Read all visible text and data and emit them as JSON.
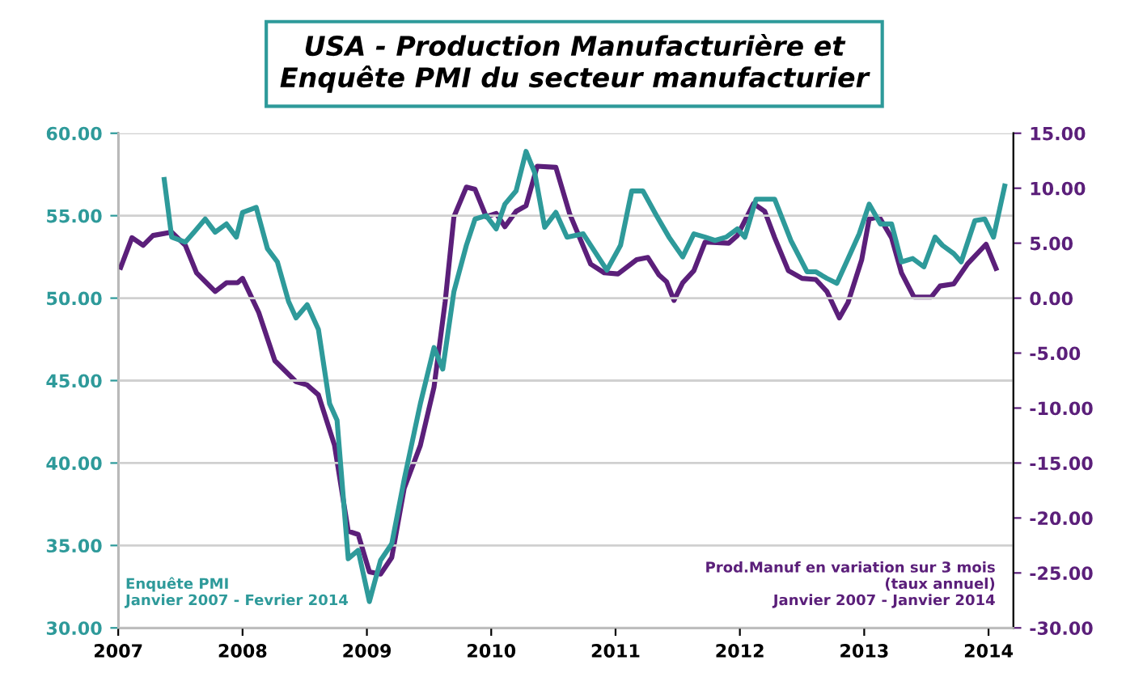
{
  "chart_data": {
    "type": "line",
    "title": "USA - Production Manufacturière et\nEnquête PMI du secteur manufacturier",
    "series": [
      {
        "name": null,
        "color": "#2e9a9a",
        "axis": "y",
        "x": [
          2007.37,
          2007.43,
          2007.54,
          2007.61,
          2007.7,
          2007.78,
          2007.87,
          2007.95,
          2008.0,
          2008.11,
          2008.2,
          2008.28,
          2008.37,
          2008.43,
          2008.52,
          2008.61,
          2008.7,
          2008.76,
          2008.85,
          2008.93,
          2009.02,
          2009.11,
          2009.2,
          2009.3,
          2009.43,
          2009.54,
          2009.61,
          2009.7,
          2009.8,
          2009.87,
          2009.96,
          2010.04,
          2010.11,
          2010.2,
          2010.28,
          2010.35,
          2010.43,
          2010.52,
          2010.61,
          2010.74,
          2010.93,
          2011.04,
          2011.13,
          2011.22,
          2011.33,
          2011.43,
          2011.54,
          2011.63,
          2011.72,
          2011.8,
          2011.89,
          2011.98,
          2012.04,
          2012.13,
          2012.28,
          2012.41,
          2012.54,
          2012.61,
          2012.7,
          2012.78,
          2012.87,
          2012.96,
          2013.04,
          2013.13,
          2013.22,
          2013.3,
          2013.39,
          2013.48,
          2013.57,
          2013.63,
          2013.72,
          2013.78,
          2013.89,
          2013.97,
          2014.04,
          2014.13
        ],
        "values": [
          57.2,
          53.7,
          53.4,
          54.0,
          54.8,
          54.0,
          54.5,
          53.7,
          55.2,
          55.5,
          53.0,
          52.2,
          49.8,
          48.8,
          49.6,
          48.1,
          43.6,
          42.6,
          34.2,
          34.7,
          31.6,
          34.1,
          35.1,
          39.0,
          43.6,
          47.0,
          45.7,
          50.4,
          53.2,
          54.8,
          55.0,
          54.2,
          55.7,
          56.5,
          58.9,
          57.6,
          54.3,
          55.2,
          53.7,
          53.9,
          51.7,
          53.2,
          56.5,
          56.5,
          55.0,
          53.7,
          52.5,
          53.9,
          53.7,
          53.5,
          53.7,
          54.2,
          53.7,
          56.0,
          56.0,
          53.5,
          51.6,
          51.6,
          51.2,
          50.9,
          52.4,
          53.9,
          55.7,
          54.5,
          54.5,
          52.2,
          52.4,
          51.9,
          53.7,
          53.2,
          52.7,
          52.2,
          54.7,
          54.8,
          53.7,
          56.8
        ]
      },
      {
        "name": null,
        "color": "#5b1f7a",
        "axis": "y2",
        "x": [
          2007.02,
          2007.11,
          2007.2,
          2007.28,
          2007.43,
          2007.54,
          2007.63,
          2007.78,
          2007.87,
          2007.96,
          2008.0,
          2008.13,
          2008.26,
          2008.43,
          2008.52,
          2008.61,
          2008.74,
          2008.85,
          2008.93,
          2009.02,
          2009.11,
          2009.2,
          2009.3,
          2009.43,
          2009.54,
          2009.63,
          2009.7,
          2009.8,
          2009.87,
          2009.96,
          2010.04,
          2010.11,
          2010.2,
          2010.28,
          2010.37,
          2010.52,
          2010.63,
          2010.8,
          2010.91,
          2011.02,
          2011.17,
          2011.26,
          2011.35,
          2011.41,
          2011.47,
          2011.54,
          2011.63,
          2011.72,
          2011.91,
          2011.98,
          2012.11,
          2012.2,
          2012.28,
          2012.39,
          2012.5,
          2012.61,
          2012.7,
          2012.8,
          2012.87,
          2012.98,
          2013.04,
          2013.12,
          2013.22,
          2013.3,
          2013.4,
          2013.54,
          2013.61,
          2013.72,
          2013.83,
          2013.98,
          2014.06
        ],
        "values": [
          2.8,
          5.5,
          4.8,
          5.7,
          6.0,
          4.8,
          2.3,
          0.6,
          1.4,
          1.4,
          1.8,
          -1.3,
          -5.7,
          -7.6,
          -7.9,
          -8.8,
          -13.4,
          -21.2,
          -21.5,
          -24.9,
          -25.1,
          -23.6,
          -17.3,
          -13.4,
          -8.1,
          -0.3,
          7.4,
          10.1,
          9.9,
          7.4,
          7.7,
          6.5,
          7.9,
          8.4,
          12.0,
          11.9,
          7.7,
          3.1,
          2.3,
          2.2,
          3.5,
          3.7,
          2.1,
          1.5,
          -0.2,
          1.4,
          2.5,
          5.1,
          5.0,
          5.7,
          8.6,
          7.9,
          5.5,
          2.5,
          1.8,
          1.7,
          0.6,
          -1.8,
          -0.4,
          3.5,
          7.2,
          7.4,
          5.5,
          2.3,
          0.1,
          0.1,
          1.1,
          1.3,
          3.1,
          4.9,
          2.7
        ]
      }
    ],
    "xlim": [
      2007,
      2014.2
    ],
    "xticks": [
      2007,
      2008,
      2009,
      2010,
      2011,
      2012,
      2013,
      2014
    ],
    "ylim": [
      30,
      60
    ],
    "yticks": [
      {
        "value": 30,
        "label": "30.00"
      },
      {
        "value": 35,
        "label": "35.00"
      },
      {
        "value": 40,
        "label": "40.00"
      },
      {
        "value": 45,
        "label": "45.00"
      },
      {
        "value": 50,
        "label": "50.00"
      },
      {
        "value": 55,
        "label": "55.00"
      },
      {
        "value": 60,
        "label": "60.00"
      }
    ],
    "y2lim": [
      -30,
      15
    ],
    "y2ticks": [
      {
        "value": -30,
        "label": "-30.00"
      },
      {
        "value": -25,
        "label": "-25.00"
      },
      {
        "value": -20,
        "label": "-20.00"
      },
      {
        "value": -15,
        "label": "-15.00"
      },
      {
        "value": -10,
        "label": "-10.00"
      },
      {
        "value": -5,
        "label": "-5.00"
      },
      {
        "value": 0,
        "label": "0.00"
      },
      {
        "value": 5,
        "label": "5.00"
      },
      {
        "value": 10,
        "label": "10.00"
      },
      {
        "value": 15,
        "label": "15.00"
      }
    ],
    "annotations": [
      "Enquête PMI\nJanvier 2007 - Fevrier 2014",
      "Prod.Manuf en variation sur 3 mois\n(taux annuel)\nJanvier 2007 - Janvier 2014"
    ],
    "grid": "y",
    "marker": "none",
    "line_style": "solid"
  }
}
